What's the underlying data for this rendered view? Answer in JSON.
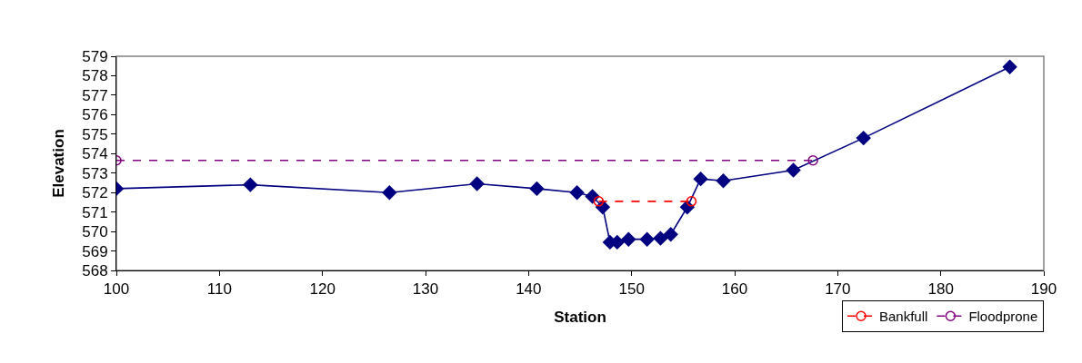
{
  "chart_data": {
    "type": "line",
    "xlabel": "Station",
    "ylabel": "Elevation",
    "xlim": [
      100,
      190
    ],
    "xticks": [
      100,
      110,
      120,
      130,
      140,
      150,
      160,
      170,
      180,
      190
    ],
    "ylim": [
      568,
      579
    ],
    "yticks": [
      568,
      569,
      570,
      571,
      572,
      573,
      574,
      575,
      576,
      577,
      578,
      579
    ],
    "grid": false,
    "legend": "bottom right",
    "series": [
      {
        "color": "#000080",
        "marker": "diamond",
        "line_style": "solid",
        "x": [
          100,
          113,
          126.5,
          135,
          140.8,
          144.7,
          146.2,
          147.2,
          147.9,
          148.6,
          149.7,
          151.5,
          152.8,
          153.8,
          155.4,
          156.7,
          158.9,
          165.7,
          172.5,
          186.7
        ],
        "values": [
          572.2,
          572.4,
          572.0,
          572.45,
          572.2,
          572.0,
          571.8,
          571.25,
          569.45,
          569.45,
          569.6,
          569.6,
          569.65,
          569.85,
          571.25,
          572.7,
          572.6,
          573.15,
          574.8,
          578.45
        ]
      },
      {
        "name": "Bankfull",
        "color": "#ff0000",
        "marker": "circle",
        "line_style": "dashed",
        "x": [
          146.8,
          155.8
        ],
        "values": [
          571.55,
          571.55
        ]
      },
      {
        "name": "Floodprone",
        "color": "#800080",
        "marker": "circle",
        "line_style": "dashed",
        "x": [
          100,
          167.6
        ],
        "values": [
          573.65,
          573.65
        ]
      }
    ]
  }
}
